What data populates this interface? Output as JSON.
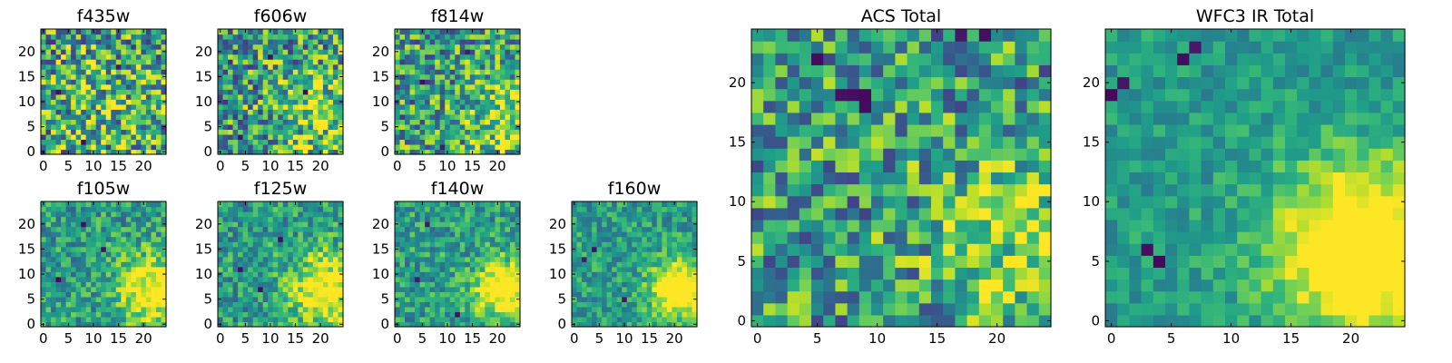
{
  "chart_data": [
    {
      "type": "heatmap",
      "title": "f435w",
      "xticks": [
        0,
        5,
        10,
        15,
        20
      ],
      "yticks": [
        0,
        5,
        10,
        15,
        20
      ],
      "xlim": [
        0,
        25
      ],
      "ylim": [
        0,
        25
      ],
      "grid_size": 25,
      "colormap": "viridis",
      "bright_center": [
        12,
        11
      ],
      "bright_radius": 8,
      "bright_amp": 0.15,
      "noise": 0.55,
      "dark_spots": [
        [
          8,
          2
        ],
        [
          15,
          17
        ],
        [
          3,
          12
        ]
      ]
    },
    {
      "type": "heatmap",
      "title": "f606w",
      "xticks": [
        0,
        5,
        10,
        15,
        20
      ],
      "yticks": [
        0,
        5,
        10,
        15,
        20
      ],
      "xlim": [
        0,
        25
      ],
      "ylim": [
        0,
        25
      ],
      "grid_size": 25,
      "colormap": "viridis",
      "bright_center": [
        21,
        8
      ],
      "bright_radius": 6,
      "bright_amp": 0.25,
      "noise": 0.5,
      "dark_spots": [
        [
          4,
          3
        ],
        [
          10,
          19
        ],
        [
          17,
          12
        ]
      ]
    },
    {
      "type": "heatmap",
      "title": "f814w",
      "xticks": [
        0,
        5,
        10,
        15,
        20
      ],
      "yticks": [
        0,
        5,
        10,
        15,
        20
      ],
      "xlim": [
        0,
        25
      ],
      "ylim": [
        0,
        25
      ],
      "grid_size": 25,
      "colormap": "viridis",
      "bright_center": [
        22,
        7
      ],
      "bright_radius": 6,
      "bright_amp": 0.3,
      "noise": 0.48,
      "dark_spots": [
        [
          9,
          1
        ],
        [
          14,
          20
        ],
        [
          5,
          14
        ]
      ]
    },
    {
      "type": "heatmap",
      "title": "f105w",
      "xticks": [
        0,
        5,
        10,
        15,
        20
      ],
      "yticks": [
        0,
        5,
        10,
        15,
        20
      ],
      "xlim": [
        0,
        25
      ],
      "ylim": [
        0,
        25
      ],
      "grid_size": 25,
      "colormap": "viridis",
      "bright_center": [
        22,
        7
      ],
      "bright_radius": 5,
      "bright_amp": 0.55,
      "noise": 0.3,
      "dark_spots": [
        [
          3,
          9
        ],
        [
          12,
          15
        ],
        [
          8,
          20
        ]
      ]
    },
    {
      "type": "heatmap",
      "title": "f125w",
      "xticks": [
        0,
        5,
        10,
        15,
        20
      ],
      "yticks": [
        0,
        5,
        10,
        15,
        20
      ],
      "xlim": [
        0,
        25
      ],
      "ylim": [
        0,
        25
      ],
      "grid_size": 25,
      "colormap": "viridis",
      "bright_center": [
        21,
        7
      ],
      "bright_radius": 5,
      "bright_amp": 0.55,
      "noise": 0.3,
      "dark_spots": [
        [
          4,
          11
        ],
        [
          8,
          7
        ],
        [
          12,
          17
        ]
      ]
    },
    {
      "type": "heatmap",
      "title": "f140w",
      "xticks": [
        0,
        5,
        10,
        15,
        20
      ],
      "yticks": [
        0,
        5,
        10,
        15,
        20
      ],
      "xlim": [
        0,
        25
      ],
      "ylim": [
        0,
        25
      ],
      "grid_size": 25,
      "colormap": "viridis",
      "bright_center": [
        21,
        7
      ],
      "bright_radius": 4,
      "bright_amp": 0.65,
      "noise": 0.28,
      "dark_spots": [
        [
          6,
          20
        ],
        [
          12,
          2
        ],
        [
          4,
          9
        ]
      ]
    },
    {
      "type": "heatmap",
      "title": "f160w",
      "xticks": [
        0,
        5,
        10,
        15,
        20
      ],
      "yticks": [
        0,
        5,
        10,
        15,
        20
      ],
      "xlim": [
        0,
        25
      ],
      "ylim": [
        0,
        25
      ],
      "grid_size": 25,
      "colormap": "viridis",
      "bright_center": [
        21,
        7
      ],
      "bright_radius": 4,
      "bright_amp": 0.7,
      "noise": 0.25,
      "dark_spots": [
        [
          2,
          13
        ],
        [
          4,
          15
        ],
        [
          10,
          5
        ]
      ]
    },
    {
      "type": "heatmap",
      "title": "ACS Total",
      "xticks": [
        0,
        5,
        10,
        15,
        20
      ],
      "yticks": [
        0,
        5,
        10,
        15,
        20
      ],
      "xlim": [
        0,
        25
      ],
      "ylim": [
        0,
        25
      ],
      "grid_size": 25,
      "colormap": "viridis",
      "bright_center": [
        22,
        7
      ],
      "bright_radius": 5,
      "bright_amp": 0.3,
      "noise": 0.45,
      "dark_spots": [
        [
          8,
          19
        ],
        [
          9,
          19
        ],
        [
          7,
          19
        ],
        [
          9,
          18
        ],
        [
          17,
          24
        ],
        [
          19,
          24
        ],
        [
          5,
          22
        ]
      ]
    },
    {
      "type": "heatmap",
      "title": "WFC3 IR Total",
      "xticks": [
        0,
        5,
        10,
        15,
        20
      ],
      "yticks": [
        0,
        5,
        10,
        15,
        20
      ],
      "xlim": [
        0,
        25
      ],
      "ylim": [
        0,
        25
      ],
      "grid_size": 25,
      "colormap": "viridis",
      "bright_center": [
        21,
        6
      ],
      "bright_radius": 5,
      "bright_amp": 0.75,
      "noise": 0.18,
      "dark_spots": [
        [
          0,
          19
        ],
        [
          1,
          20
        ],
        [
          3,
          6
        ],
        [
          4,
          5
        ],
        [
          6,
          22
        ],
        [
          7,
          23
        ]
      ]
    }
  ]
}
